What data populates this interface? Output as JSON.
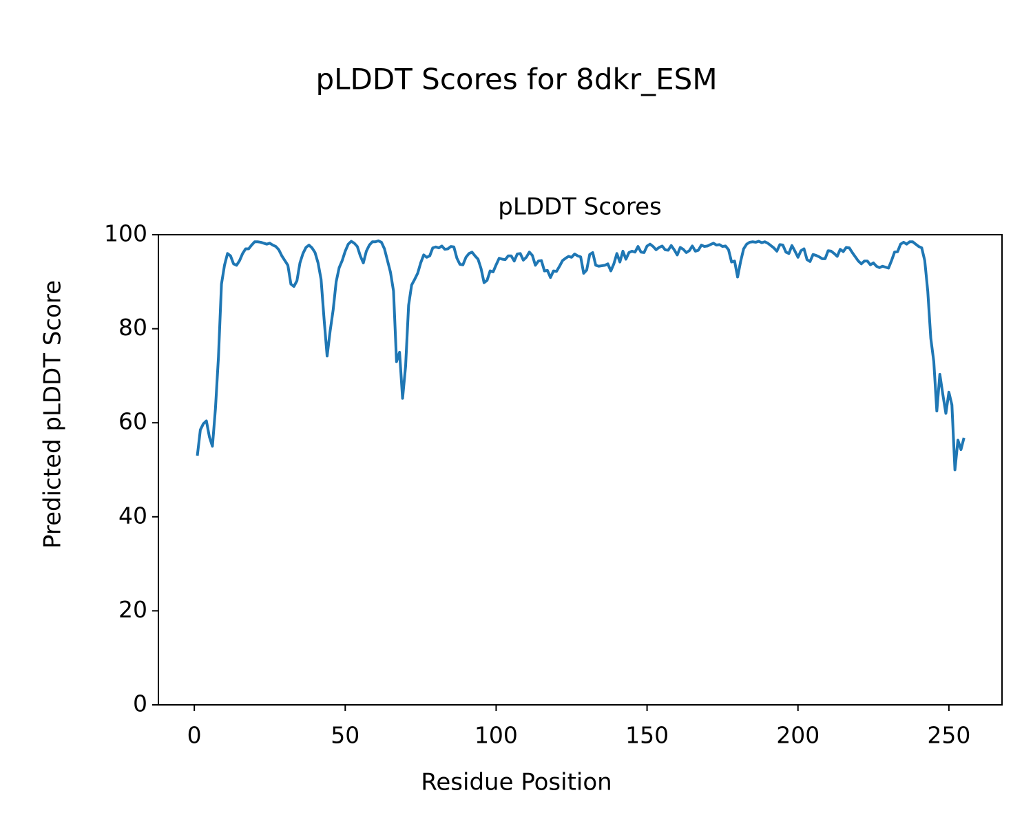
{
  "chart_data": {
    "type": "line",
    "title": "pLDDT Scores for 8dkr_ESM",
    "subtitle": "pLDDT Scores",
    "x_label": "Residue Position",
    "y_label": "Predicted pLDDT Score",
    "xlim": [
      -11.9,
      267.6
    ],
    "ylim": [
      0,
      100
    ],
    "xticks": [
      0,
      50,
      100,
      150,
      200,
      250
    ],
    "yticks": [
      0,
      20,
      40,
      60,
      80,
      100
    ],
    "grid": false,
    "x": [
      1,
      2,
      3,
      4,
      5,
      6,
      7,
      8,
      9,
      10,
      11,
      12,
      13,
      14,
      15,
      16,
      17,
      18,
      19,
      20,
      21,
      22,
      23,
      24,
      25,
      26,
      27,
      28,
      29,
      30,
      31,
      32,
      33,
      34,
      35,
      36,
      37,
      38,
      39,
      40,
      41,
      42,
      43,
      44,
      45,
      46,
      47,
      48,
      49,
      50,
      51,
      52,
      53,
      54,
      55,
      56,
      57,
      58,
      59,
      60,
      61,
      62,
      63,
      64,
      65,
      66,
      67,
      68,
      69,
      70,
      71,
      72,
      73,
      74,
      75,
      76,
      77,
      78,
      79,
      80,
      81,
      82,
      83,
      84,
      85,
      86,
      87,
      88,
      89,
      90,
      91,
      92,
      93,
      94,
      95,
      96,
      97,
      98,
      99,
      100,
      101,
      102,
      103,
      104,
      105,
      106,
      107,
      108,
      109,
      110,
      111,
      112,
      113,
      114,
      115,
      116,
      117,
      118,
      119,
      120,
      121,
      122,
      123,
      124,
      125,
      126,
      127,
      128,
      129,
      130,
      131,
      132,
      133,
      134,
      135,
      136,
      137,
      138,
      139,
      140,
      141,
      142,
      143,
      144,
      145,
      146,
      147,
      148,
      149,
      150,
      151,
      152,
      153,
      154,
      155,
      156,
      157,
      158,
      159,
      160,
      161,
      162,
      163,
      164,
      165,
      166,
      167,
      168,
      169,
      170,
      171,
      172,
      173,
      174,
      175,
      176,
      177,
      178,
      179,
      180,
      181,
      182,
      183,
      184,
      185,
      186,
      187,
      188,
      189,
      190,
      191,
      192,
      193,
      194,
      195,
      196,
      197,
      198,
      199,
      200,
      201,
      202,
      203,
      204,
      205,
      206,
      207,
      208,
      209,
      210,
      211,
      212,
      213,
      214,
      215,
      216,
      217,
      218,
      219,
      220,
      221,
      222,
      223,
      224,
      225,
      226,
      227,
      228,
      229,
      230,
      231,
      232,
      233,
      234,
      235,
      236,
      237,
      238,
      239,
      240,
      241,
      242,
      243,
      244,
      245,
      246,
      247,
      248,
      249,
      250,
      251,
      252,
      253,
      254,
      255
    ],
    "series": [
      {
        "color": "#1f77b4",
        "values": [
          53,
          58.5,
          59.8,
          60.4,
          57,
          55,
          63,
          74,
          89.5,
          93.5,
          96,
          95.5,
          93.8,
          93.5,
          94.5,
          96,
          97,
          97,
          97.8,
          98.5,
          98.5,
          98.4,
          98.2,
          98,
          98.2,
          97.8,
          97.5,
          96.8,
          95.5,
          94.5,
          93.5,
          89.5,
          89,
          90.2,
          94,
          96,
          97.3,
          97.8,
          97.2,
          96.2,
          94,
          90.5,
          82,
          74.2,
          79.5,
          84,
          90,
          93,
          94.5,
          96.5,
          98,
          98.6,
          98.2,
          97.5,
          95.5,
          94,
          96.5,
          97.8,
          98.5,
          98.5,
          98.7,
          98.4,
          97,
          94.5,
          92,
          88,
          73,
          75,
          65.2,
          72,
          85,
          89.3,
          90.5,
          91.8,
          94,
          95.7,
          95.2,
          95.5,
          97.2,
          97.4,
          97.2,
          97.6,
          96.9,
          97,
          97.5,
          97.4,
          95,
          93.7,
          93.6,
          95.2,
          96,
          96.3,
          95.5,
          94.8,
          92.8,
          89.8,
          90.3,
          92.3,
          92.1,
          93.6,
          95,
          94.8,
          94.7,
          95.5,
          95.5,
          94.4,
          95.9,
          96,
          94.6,
          95.2,
          96.3,
          95.6,
          93.5,
          94.4,
          94.5,
          92.3,
          92.4,
          90.9,
          92.3,
          92.2,
          93.3,
          94.5,
          95,
          95.4,
          95.2,
          95.9,
          95.5,
          95.3,
          91.8,
          92.5,
          95.8,
          96.2,
          93.5,
          93.3,
          93.4,
          93.5,
          93.8,
          92.3,
          93.8,
          96,
          94.2,
          96.5,
          94.8,
          96.2,
          96.5,
          96.3,
          97.5,
          96.3,
          96.2,
          97.6,
          98,
          97.5,
          96.8,
          97.3,
          97.6,
          96.8,
          96.7,
          97.7,
          96.8,
          95.7,
          97.3,
          96.9,
          96.2,
          96.6,
          97.6,
          96.5,
          96.7,
          97.8,
          97.5,
          97.6,
          97.9,
          98.2,
          97.8,
          97.9,
          97.5,
          97.6,
          96.8,
          94.2,
          94.4,
          91,
          94.3,
          97,
          98,
          98.4,
          98.5,
          98.4,
          98.6,
          98.3,
          98.5,
          98.2,
          97.7,
          97.2,
          96.5,
          97.9,
          97.8,
          96.3,
          96,
          97.7,
          96.5,
          95.2,
          96.6,
          97,
          94.7,
          94.3,
          95.8,
          95.6,
          95.3,
          94.9,
          94.9,
          96.6,
          96.5,
          96,
          95.4,
          96.9,
          96.4,
          97.3,
          97.2,
          96.2,
          95.3,
          94.4,
          93.8,
          94.4,
          94.4,
          93.6,
          94,
          93.3,
          93,
          93.3,
          93.1,
          92.9,
          94.5,
          96.3,
          96.4,
          98,
          98.4,
          98,
          98.5,
          98.5,
          98,
          97.5,
          97.2,
          94.5,
          88,
          78,
          73,
          62.5,
          70.3,
          66,
          62,
          66.5,
          63.8,
          50,
          56.3,
          54.3,
          56.8
        ]
      }
    ]
  }
}
